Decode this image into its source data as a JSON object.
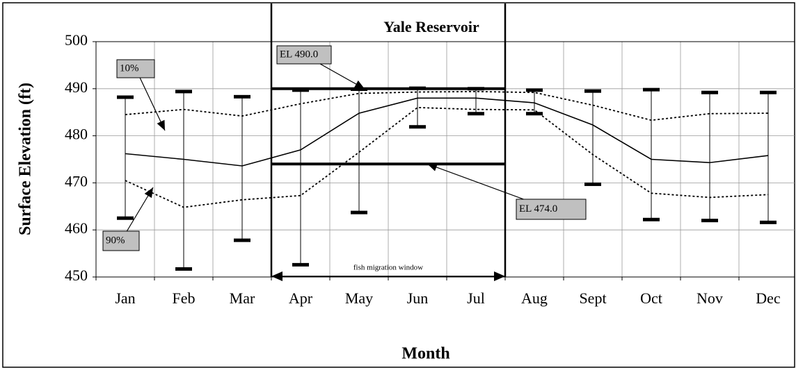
{
  "chart_data": {
    "type": "line",
    "title": "Yale Reservoir",
    "ylabel": "Surface Elevation (ft)",
    "xlabel": "Month",
    "categories": [
      "Jan",
      "Feb",
      "Mar",
      "Apr",
      "May",
      "Jun",
      "Jul",
      "Aug",
      "Sept",
      "Oct",
      "Nov",
      "Dec"
    ],
    "series": [
      {
        "name": "10%",
        "color": "#000000",
        "style": "dotted",
        "values": [
          484.5,
          485.6,
          484.2,
          486.8,
          489.0,
          489.3,
          489.4,
          489.2,
          486.5,
          483.3,
          484.7,
          484.8
        ]
      },
      {
        "name": "90%",
        "color": "#000000",
        "style": "dotted",
        "values": [
          470.5,
          464.8,
          466.4,
          467.3,
          476.5,
          486.0,
          485.6,
          485.5,
          476.0,
          467.8,
          466.9,
          467.5
        ]
      },
      {
        "color": "#000000",
        "style": "solid",
        "values": [
          476.2,
          475.0,
          473.6,
          477.0,
          484.8,
          488.0,
          488.0,
          487.0,
          482.3,
          475.0,
          474.3,
          475.8
        ]
      }
    ],
    "range": {
      "high": [
        488.2,
        489.4,
        488.3,
        489.7,
        489.9,
        490.1,
        490.0,
        489.7,
        489.5,
        489.8,
        489.2,
        489.2
      ],
      "low": [
        462.5,
        451.7,
        457.8,
        452.6,
        463.7,
        481.9,
        484.7,
        484.7,
        469.7,
        462.2,
        462.0,
        461.6
      ]
    },
    "reference_lines": [
      {
        "value": 490,
        "label": "EL 490.0"
      },
      {
        "value": 474,
        "label": "EL 474.0"
      }
    ],
    "window": {
      "from": "Apr",
      "to": "Jul",
      "label": "fish migration window"
    },
    "ylim": [
      450,
      500
    ],
    "yticks": [
      450,
      460,
      470,
      480,
      490,
      500
    ],
    "grid": true
  }
}
